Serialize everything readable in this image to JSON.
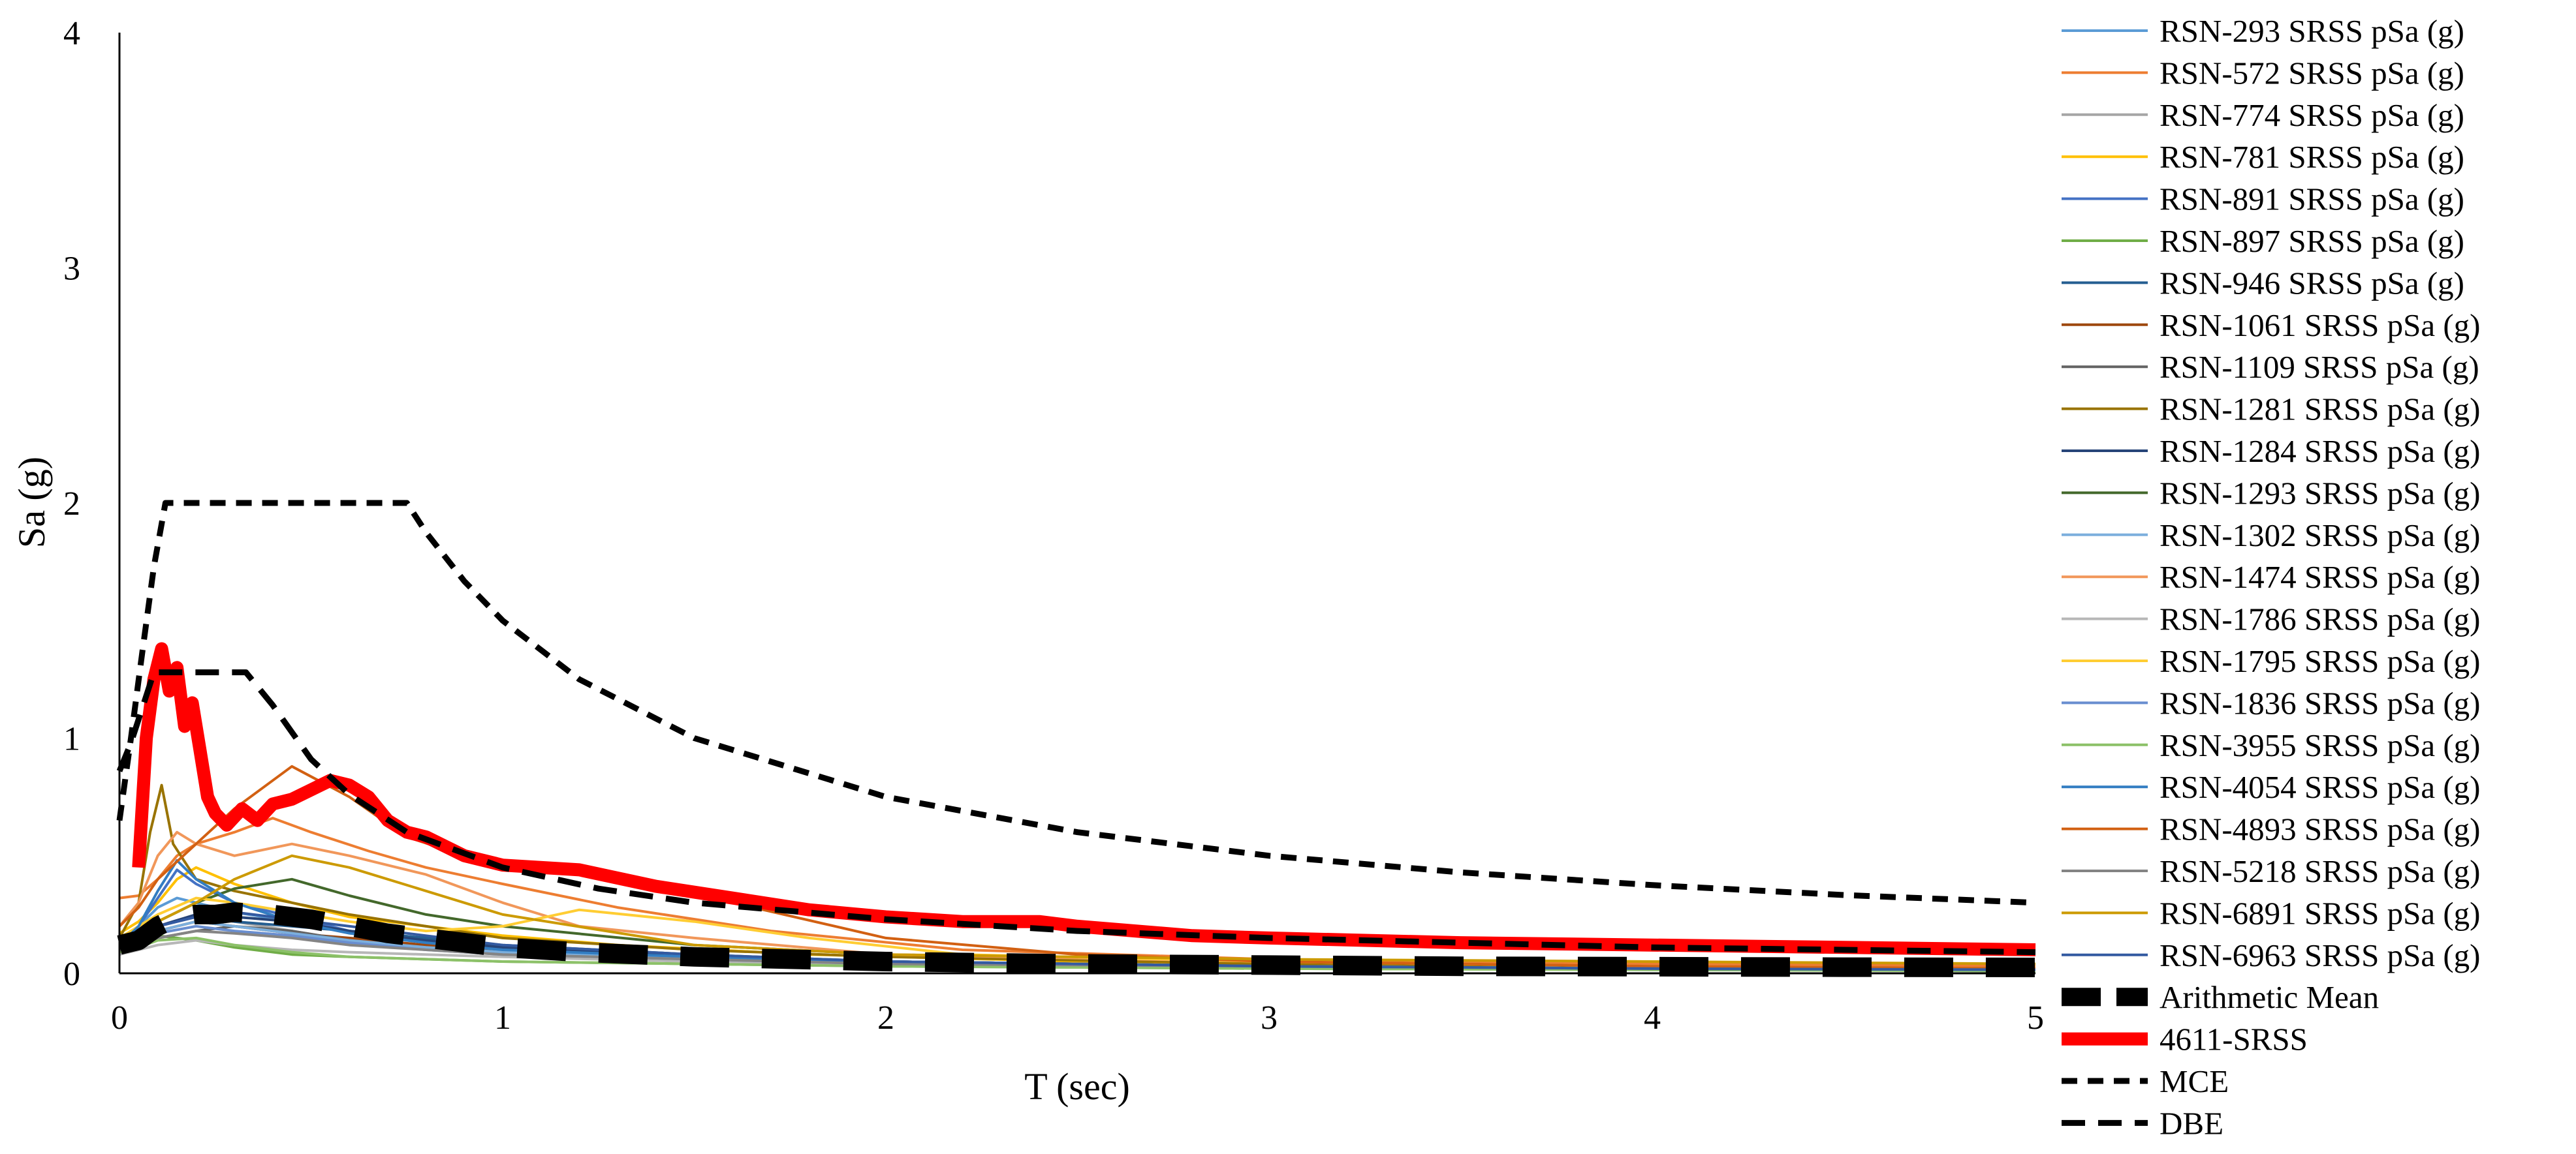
{
  "chart_data": {
    "type": "line",
    "xlabel": "T (sec)",
    "ylabel": "Sa (g)",
    "xlim": [
      0,
      5
    ],
    "ylim": [
      0,
      4
    ],
    "x_ticks": [
      "0",
      "1",
      "2",
      "3",
      "4",
      "5"
    ],
    "y_ticks": [
      "0",
      "1",
      "2",
      "3",
      "4"
    ],
    "grid": false,
    "legend_position": "right",
    "series": [
      {
        "name": "RSN-293 SRSS pSa (g)",
        "color": "#5B9BD5",
        "width": 4,
        "dash": "",
        "x": [
          0,
          0.05,
          0.1,
          0.15,
          0.2,
          0.3,
          0.45,
          0.6,
          0.8,
          1.0,
          1.3,
          1.7,
          2.2,
          3.0,
          4.0,
          5.0
        ],
        "y": [
          0.14,
          0.2,
          0.28,
          0.32,
          0.3,
          0.26,
          0.22,
          0.18,
          0.15,
          0.11,
          0.08,
          0.06,
          0.04,
          0.03,
          0.02,
          0.015
        ]
      },
      {
        "name": "RSN-572 SRSS pSa (g)",
        "color": "#ED7D31",
        "width": 4,
        "dash": "",
        "x": [
          0,
          0.05,
          0.1,
          0.15,
          0.2,
          0.3,
          0.4,
          0.5,
          0.65,
          0.8,
          1.0,
          1.3,
          1.7,
          2.2,
          3.0,
          4.0,
          5.0
        ],
        "y": [
          0.32,
          0.33,
          0.4,
          0.5,
          0.55,
          0.6,
          0.66,
          0.6,
          0.52,
          0.45,
          0.38,
          0.28,
          0.18,
          0.1,
          0.06,
          0.04,
          0.03
        ]
      },
      {
        "name": "RSN-774 SRSS pSa (g)",
        "color": "#A5A5A5",
        "width": 4,
        "dash": "",
        "x": [
          0,
          0.05,
          0.1,
          0.2,
          0.3,
          0.45,
          0.6,
          0.8,
          1.0,
          1.4,
          2.0,
          3.0,
          4.0,
          5.0
        ],
        "y": [
          0.12,
          0.15,
          0.2,
          0.25,
          0.22,
          0.18,
          0.14,
          0.12,
          0.1,
          0.07,
          0.05,
          0.03,
          0.02,
          0.015
        ]
      },
      {
        "name": "RSN-781 SRSS pSa (g)",
        "color": "#FFC000",
        "width": 4,
        "dash": "",
        "x": [
          0,
          0.05,
          0.1,
          0.15,
          0.2,
          0.3,
          0.45,
          0.6,
          0.8,
          1.0,
          1.3,
          1.8,
          2.5,
          3.5,
          5.0
        ],
        "y": [
          0.17,
          0.22,
          0.3,
          0.4,
          0.45,
          0.38,
          0.3,
          0.24,
          0.2,
          0.16,
          0.12,
          0.08,
          0.05,
          0.03,
          0.02
        ]
      },
      {
        "name": "RSN-891 SRSS pSa (g)",
        "color": "#4472C4",
        "width": 4,
        "dash": "",
        "x": [
          0,
          0.05,
          0.1,
          0.15,
          0.2,
          0.3,
          0.45,
          0.6,
          0.8,
          1.0,
          1.4,
          2.0,
          3.0,
          4.0,
          5.0
        ],
        "y": [
          0.13,
          0.2,
          0.32,
          0.44,
          0.38,
          0.3,
          0.24,
          0.18,
          0.14,
          0.11,
          0.08,
          0.05,
          0.03,
          0.02,
          0.015
        ]
      },
      {
        "name": "RSN-897 SRSS pSa (g)",
        "color": "#70AD47",
        "width": 4,
        "dash": "",
        "x": [
          0,
          0.05,
          0.1,
          0.2,
          0.3,
          0.45,
          0.6,
          0.8,
          1.0,
          1.5,
          2.0,
          3.0,
          4.0,
          5.0
        ],
        "y": [
          0.1,
          0.13,
          0.16,
          0.14,
          0.11,
          0.08,
          0.07,
          0.06,
          0.05,
          0.04,
          0.03,
          0.02,
          0.015,
          0.01
        ]
      },
      {
        "name": "RSN-946 SRSS pSa (g)",
        "color": "#255E91",
        "width": 4,
        "dash": "",
        "x": [
          0,
          0.05,
          0.1,
          0.2,
          0.3,
          0.45,
          0.6,
          0.8,
          1.0,
          1.5,
          2.0,
          3.0,
          4.0,
          5.0
        ],
        "y": [
          0.12,
          0.16,
          0.2,
          0.24,
          0.22,
          0.2,
          0.18,
          0.15,
          0.12,
          0.08,
          0.05,
          0.03,
          0.02,
          0.015
        ]
      },
      {
        "name": "RSN-1061 SRSS pSa (g)",
        "color": "#9E480E",
        "width": 4,
        "dash": "",
        "x": [
          0,
          0.05,
          0.1,
          0.2,
          0.3,
          0.45,
          0.6,
          0.8,
          1.0,
          1.5,
          2.0,
          3.0,
          4.0,
          5.0
        ],
        "y": [
          0.11,
          0.14,
          0.18,
          0.22,
          0.2,
          0.17,
          0.15,
          0.12,
          0.1,
          0.07,
          0.05,
          0.03,
          0.02,
          0.015
        ]
      },
      {
        "name": "RSN-1109 SRSS pSa (g)",
        "color": "#636363",
        "width": 4,
        "dash": "",
        "x": [
          0,
          0.05,
          0.1,
          0.2,
          0.3,
          0.45,
          0.6,
          0.8,
          1.0,
          1.5,
          2.0,
          3.0,
          4.0,
          5.0
        ],
        "y": [
          0.1,
          0.12,
          0.15,
          0.18,
          0.2,
          0.18,
          0.14,
          0.11,
          0.09,
          0.06,
          0.04,
          0.03,
          0.02,
          0.015
        ]
      },
      {
        "name": "RSN-1281 SRSS pSa (g)",
        "color": "#997300",
        "width": 4,
        "dash": "",
        "x": [
          0,
          0.05,
          0.08,
          0.11,
          0.14,
          0.2,
          0.3,
          0.45,
          0.6,
          0.8,
          1.0,
          1.5,
          2.0,
          3.0,
          4.0,
          5.0
        ],
        "y": [
          0.15,
          0.3,
          0.6,
          0.8,
          0.55,
          0.4,
          0.35,
          0.3,
          0.25,
          0.2,
          0.15,
          0.1,
          0.07,
          0.04,
          0.03,
          0.02
        ]
      },
      {
        "name": "RSN-1284 SRSS pSa (g)",
        "color": "#264478",
        "width": 4,
        "dash": "",
        "x": [
          0,
          0.05,
          0.1,
          0.2,
          0.3,
          0.45,
          0.6,
          0.8,
          1.0,
          1.5,
          2.0,
          3.0,
          4.0,
          5.0
        ],
        "y": [
          0.12,
          0.15,
          0.2,
          0.25,
          0.24,
          0.22,
          0.18,
          0.14,
          0.11,
          0.07,
          0.05,
          0.03,
          0.02,
          0.015
        ]
      },
      {
        "name": "RSN-1293 SRSS pSa (g)",
        "color": "#43682B",
        "width": 4,
        "dash": "",
        "x": [
          0,
          0.05,
          0.1,
          0.2,
          0.3,
          0.45,
          0.6,
          0.8,
          1.0,
          1.5,
          2.0,
          3.0,
          4.0,
          5.0
        ],
        "y": [
          0.12,
          0.16,
          0.22,
          0.3,
          0.36,
          0.4,
          0.33,
          0.25,
          0.2,
          0.12,
          0.08,
          0.05,
          0.03,
          0.02
        ]
      },
      {
        "name": "RSN-1302 SRSS pSa (g)",
        "color": "#7CAFDD",
        "width": 4,
        "dash": "",
        "x": [
          0,
          0.05,
          0.1,
          0.2,
          0.3,
          0.45,
          0.6,
          0.8,
          1.0,
          1.5,
          2.0,
          3.0,
          4.0,
          5.0
        ],
        "y": [
          0.11,
          0.14,
          0.18,
          0.22,
          0.2,
          0.17,
          0.14,
          0.11,
          0.09,
          0.06,
          0.04,
          0.03,
          0.02,
          0.015
        ]
      },
      {
        "name": "RSN-1474 SRSS pSa (g)",
        "color": "#F1975A",
        "width": 4,
        "dash": "",
        "x": [
          0,
          0.05,
          0.1,
          0.15,
          0.2,
          0.3,
          0.45,
          0.6,
          0.8,
          1.0,
          1.2,
          1.5,
          2.0,
          3.0,
          4.0,
          5.0
        ],
        "y": [
          0.2,
          0.3,
          0.5,
          0.6,
          0.55,
          0.5,
          0.55,
          0.5,
          0.42,
          0.3,
          0.2,
          0.15,
          0.08,
          0.05,
          0.03,
          0.02
        ]
      },
      {
        "name": "RSN-1786 SRSS pSa (g)",
        "color": "#B7B7B7",
        "width": 4,
        "dash": "",
        "x": [
          0,
          0.05,
          0.1,
          0.2,
          0.3,
          0.45,
          0.6,
          0.8,
          1.0,
          1.5,
          2.0,
          3.0,
          4.0,
          5.0
        ],
        "y": [
          0.08,
          0.1,
          0.12,
          0.14,
          0.12,
          0.1,
          0.09,
          0.08,
          0.07,
          0.05,
          0.04,
          0.03,
          0.02,
          0.015
        ]
      },
      {
        "name": "RSN-1795 SRSS pSa (g)",
        "color": "#FFCD33",
        "width": 4,
        "dash": "",
        "x": [
          0,
          0.05,
          0.1,
          0.2,
          0.3,
          0.45,
          0.6,
          0.8,
          1.0,
          1.2,
          1.5,
          1.8,
          2.2,
          3.0,
          4.0,
          5.0
        ],
        "y": [
          0.15,
          0.2,
          0.25,
          0.32,
          0.3,
          0.26,
          0.22,
          0.18,
          0.2,
          0.27,
          0.22,
          0.15,
          0.08,
          0.05,
          0.03,
          0.02
        ]
      },
      {
        "name": "RSN-1836 SRSS pSa (g)",
        "color": "#698ED0",
        "width": 4,
        "dash": "",
        "x": [
          0,
          0.05,
          0.1,
          0.2,
          0.3,
          0.45,
          0.6,
          0.8,
          1.0,
          1.5,
          2.0,
          3.0,
          4.0,
          5.0
        ],
        "y": [
          0.1,
          0.13,
          0.17,
          0.2,
          0.18,
          0.16,
          0.13,
          0.1,
          0.08,
          0.06,
          0.04,
          0.03,
          0.02,
          0.015
        ]
      },
      {
        "name": "RSN-3955 SRSS pSa (g)",
        "color": "#8CC168",
        "width": 4,
        "dash": "",
        "x": [
          0,
          0.05,
          0.1,
          0.2,
          0.3,
          0.45,
          0.6,
          0.8,
          1.0,
          1.5,
          2.0,
          3.0,
          4.0,
          5.0
        ],
        "y": [
          0.09,
          0.11,
          0.14,
          0.15,
          0.12,
          0.09,
          0.07,
          0.06,
          0.05,
          0.04,
          0.03,
          0.02,
          0.015,
          0.01
        ]
      },
      {
        "name": "RSN-4054 SRSS pSa (g)",
        "color": "#327DC2",
        "width": 4,
        "dash": "",
        "x": [
          0,
          0.05,
          0.1,
          0.15,
          0.2,
          0.3,
          0.45,
          0.6,
          0.8,
          1.0,
          1.5,
          2.0,
          3.0,
          4.0,
          5.0
        ],
        "y": [
          0.12,
          0.2,
          0.35,
          0.48,
          0.4,
          0.3,
          0.22,
          0.17,
          0.13,
          0.1,
          0.07,
          0.05,
          0.03,
          0.02,
          0.015
        ]
      },
      {
        "name": "RSN-4893 SRSS pSa (g)",
        "color": "#D26012",
        "width": 4,
        "dash": "",
        "x": [
          0,
          0.05,
          0.1,
          0.2,
          0.3,
          0.45,
          0.6,
          0.75,
          0.9,
          1.1,
          1.3,
          1.6,
          2.0,
          2.5,
          3.0,
          4.0,
          5.0
        ],
        "y": [
          0.2,
          0.28,
          0.4,
          0.55,
          0.7,
          0.88,
          0.75,
          0.58,
          0.5,
          0.45,
          0.4,
          0.3,
          0.15,
          0.08,
          0.05,
          0.03,
          0.02
        ]
      },
      {
        "name": "RSN-5218 SRSS pSa (g)",
        "color": "#848484",
        "width": 4,
        "dash": "",
        "x": [
          0,
          0.05,
          0.1,
          0.2,
          0.3,
          0.45,
          0.6,
          0.8,
          1.0,
          1.5,
          2.0,
          3.0,
          4.0,
          5.0
        ],
        "y": [
          0.1,
          0.12,
          0.15,
          0.18,
          0.17,
          0.15,
          0.12,
          0.1,
          0.08,
          0.06,
          0.04,
          0.03,
          0.02,
          0.015
        ]
      },
      {
        "name": "RSN-6891 SRSS pSa (g)",
        "color": "#CC9A00",
        "width": 4,
        "dash": "",
        "x": [
          0,
          0.05,
          0.1,
          0.2,
          0.3,
          0.45,
          0.6,
          0.8,
          1.0,
          1.5,
          2.0,
          3.0,
          4.0,
          5.0
        ],
        "y": [
          0.14,
          0.18,
          0.22,
          0.3,
          0.4,
          0.5,
          0.45,
          0.35,
          0.25,
          0.12,
          0.08,
          0.06,
          0.05,
          0.04
        ]
      },
      {
        "name": "RSN-6963 SRSS pSa (g)",
        "color": "#335AA1",
        "width": 4,
        "dash": "",
        "x": [
          0,
          0.05,
          0.1,
          0.2,
          0.3,
          0.45,
          0.6,
          0.8,
          1.0,
          1.5,
          2.0,
          3.0,
          4.0,
          5.0
        ],
        "y": [
          0.11,
          0.15,
          0.2,
          0.24,
          0.26,
          0.23,
          0.2,
          0.16,
          0.12,
          0.08,
          0.05,
          0.03,
          0.02,
          0.015
        ]
      },
      {
        "name": "Arithmetic Mean",
        "color": "#000000",
        "width": 30,
        "dash": "75,50",
        "x": [
          0,
          0.05,
          0.1,
          0.15,
          0.2,
          0.25,
          0.3,
          0.4,
          0.5,
          0.6,
          0.7,
          0.8,
          1.0,
          1.2,
          1.5,
          2.0,
          2.5,
          3.0,
          3.5,
          4.0,
          4.5,
          5.0
        ],
        "y": [
          0.12,
          0.14,
          0.2,
          0.24,
          0.25,
          0.25,
          0.26,
          0.25,
          0.23,
          0.2,
          0.17,
          0.15,
          0.11,
          0.09,
          0.07,
          0.05,
          0.04,
          0.035,
          0.03,
          0.028,
          0.026,
          0.025
        ]
      },
      {
        "name": "4611-SRSS",
        "color": "#FF0000",
        "width": 20,
        "dash": "",
        "x": [
          0.05,
          0.07,
          0.09,
          0.11,
          0.13,
          0.15,
          0.17,
          0.19,
          0.21,
          0.23,
          0.25,
          0.28,
          0.32,
          0.36,
          0.4,
          0.45,
          0.5,
          0.55,
          0.6,
          0.65,
          0.7,
          0.75,
          0.8,
          0.9,
          1.0,
          1.2,
          1.4,
          1.6,
          1.8,
          2.0,
          2.2,
          2.4,
          2.5,
          2.8,
          3.0,
          3.5,
          4.0,
          4.5,
          5.0
        ],
        "y": [
          0.45,
          1.0,
          1.25,
          1.38,
          1.2,
          1.3,
          1.05,
          1.15,
          0.95,
          0.75,
          0.68,
          0.63,
          0.7,
          0.65,
          0.72,
          0.74,
          0.78,
          0.82,
          0.8,
          0.75,
          0.65,
          0.6,
          0.58,
          0.5,
          0.46,
          0.44,
          0.37,
          0.32,
          0.27,
          0.24,
          0.22,
          0.22,
          0.2,
          0.16,
          0.15,
          0.13,
          0.12,
          0.11,
          0.1
        ]
      },
      {
        "name": "MCE",
        "color": "#000000",
        "width": 9,
        "dash": "24,16",
        "x": [
          0,
          0.03,
          0.06,
          0.09,
          0.12,
          0.15,
          0.75,
          0.8,
          0.9,
          1.0,
          1.2,
          1.5,
          2.0,
          2.5,
          3.0,
          3.5,
          4.0,
          4.5,
          5.0
        ],
        "y": [
          0.65,
          1.0,
          1.37,
          1.73,
          2.0,
          2.0,
          2.0,
          1.875,
          1.667,
          1.5,
          1.25,
          1.0,
          0.75,
          0.6,
          0.5,
          0.429,
          0.375,
          0.333,
          0.3
        ]
      },
      {
        "name": "DBE",
        "color": "#000000",
        "width": 9,
        "dash": "36,20",
        "x": [
          0,
          0.03,
          0.06,
          0.09,
          0.33,
          0.4,
          0.5,
          0.6,
          0.75,
          1.0,
          1.25,
          1.5,
          2.0,
          2.5,
          3.0,
          3.5,
          4.0,
          4.5,
          5.0
        ],
        "y": [
          0.86,
          0.98,
          1.13,
          1.28,
          1.28,
          1.14,
          0.91,
          0.76,
          0.6,
          0.45,
          0.36,
          0.3,
          0.23,
          0.18,
          0.15,
          0.13,
          0.11,
          0.1,
          0.09
        ]
      }
    ]
  }
}
